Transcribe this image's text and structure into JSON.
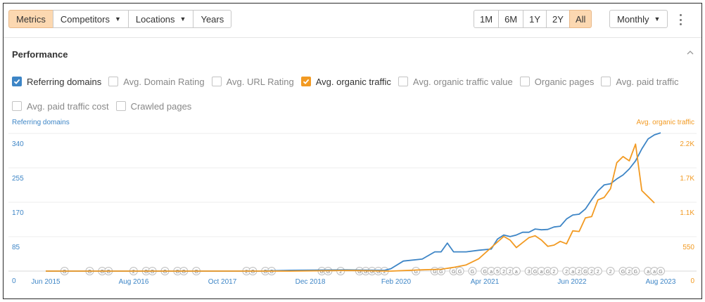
{
  "toolbar": {
    "tabs": [
      {
        "label": "Metrics",
        "active": true,
        "dropdown": false
      },
      {
        "label": "Competitors",
        "active": false,
        "dropdown": true
      },
      {
        "label": "Locations",
        "active": false,
        "dropdown": true
      },
      {
        "label": "Years",
        "active": false,
        "dropdown": false
      }
    ],
    "ranges": [
      {
        "label": "1M",
        "active": false
      },
      {
        "label": "6M",
        "active": false
      },
      {
        "label": "1Y",
        "active": false
      },
      {
        "label": "2Y",
        "active": false
      },
      {
        "label": "All",
        "active": true
      }
    ],
    "interval_label": "Monthly",
    "more_icon": "more-vertical-icon"
  },
  "performance": {
    "title": "Performance",
    "collapse_icon": "chevron-up-icon",
    "metrics_row1": [
      {
        "label": "Referring domains",
        "checked": true,
        "color": "#3d85c6"
      },
      {
        "label": "Avg. Domain Rating",
        "checked": false
      },
      {
        "label": "Avg. URL Rating",
        "checked": false
      },
      {
        "label": "Avg. organic traffic",
        "checked": true,
        "color": "#f29a22"
      },
      {
        "label": "Avg. organic traffic value",
        "checked": false
      },
      {
        "label": "Organic pages",
        "checked": false
      },
      {
        "label": "Avg. paid traffic",
        "checked": false
      }
    ],
    "metrics_row2": [
      {
        "label": "Avg. paid traffic cost",
        "checked": false
      },
      {
        "label": "Crawled pages",
        "checked": false
      }
    ]
  },
  "chart_data": {
    "type": "line",
    "left_axis_label": "Referring domains",
    "right_axis_label": "Avg. organic traffic",
    "left_ticks": [
      "0",
      "85",
      "170",
      "255",
      "340"
    ],
    "right_ticks": [
      "0",
      "550",
      "1.1K",
      "1.7K",
      "2.2K"
    ],
    "x_tick_labels": [
      "Jun 2015",
      "Aug 2016",
      "Oct 2017",
      "Dec 2018",
      "Feb 2020",
      "Apr 2021",
      "Jun 2022",
      "Aug 2023"
    ],
    "grid": true,
    "colors": {
      "left": "#3d85c6",
      "right": "#f29a22"
    },
    "series": [
      {
        "name": "Referring domains",
        "axis": "left",
        "color": "#3d85c6",
        "points": [
          [
            "2015-06",
            0
          ],
          [
            "2016-01",
            0
          ],
          [
            "2016-08",
            0
          ],
          [
            "2017-03",
            0
          ],
          [
            "2017-10",
            0
          ],
          [
            "2018-04",
            0
          ],
          [
            "2018-09",
            2
          ],
          [
            "2019-06",
            3
          ],
          [
            "2019-12",
            2
          ],
          [
            "2020-01",
            6
          ],
          [
            "2020-03",
            25
          ],
          [
            "2020-06",
            30
          ],
          [
            "2020-08",
            48
          ],
          [
            "2020-09",
            48
          ],
          [
            "2020-10",
            70
          ],
          [
            "2020-11",
            48
          ],
          [
            "2020-12",
            48
          ],
          [
            "2021-01",
            48
          ],
          [
            "2021-03",
            52
          ],
          [
            "2021-05",
            55
          ],
          [
            "2021-06",
            80
          ],
          [
            "2021-07",
            90
          ],
          [
            "2021-08",
            86
          ],
          [
            "2021-09",
            90
          ],
          [
            "2021-10",
            97
          ],
          [
            "2021-11",
            97
          ],
          [
            "2021-12",
            105
          ],
          [
            "2022-01",
            103
          ],
          [
            "2022-02",
            104
          ],
          [
            "2022-03",
            110
          ],
          [
            "2022-04",
            112
          ],
          [
            "2022-05",
            130
          ],
          [
            "2022-06",
            140
          ],
          [
            "2022-07",
            142
          ],
          [
            "2022-08",
            155
          ],
          [
            "2022-09",
            178
          ],
          [
            "2022-10",
            200
          ],
          [
            "2022-11",
            215
          ],
          [
            "2022-12",
            218
          ],
          [
            "2023-01",
            230
          ],
          [
            "2023-02",
            240
          ],
          [
            "2023-03",
            255
          ],
          [
            "2023-04",
            275
          ],
          [
            "2023-05",
            305
          ],
          [
            "2023-06",
            330
          ],
          [
            "2023-07",
            340
          ],
          [
            "2023-08",
            345
          ]
        ]
      },
      {
        "name": "Avg. organic traffic",
        "axis": "right",
        "color": "#f29a22",
        "points": [
          [
            "2015-06",
            0
          ],
          [
            "2016-01",
            0
          ],
          [
            "2016-08",
            0
          ],
          [
            "2017-03",
            0
          ],
          [
            "2017-10",
            0
          ],
          [
            "2018-04",
            0
          ],
          [
            "2018-09",
            0
          ],
          [
            "2019-06",
            10
          ],
          [
            "2020-01",
            0
          ],
          [
            "2020-06",
            20
          ],
          [
            "2020-09",
            30
          ],
          [
            "2020-11",
            60
          ],
          [
            "2021-01",
            100
          ],
          [
            "2021-03",
            200
          ],
          [
            "2021-05",
            380
          ],
          [
            "2021-07",
            560
          ],
          [
            "2021-08",
            500
          ],
          [
            "2021-09",
            380
          ],
          [
            "2021-10",
            460
          ],
          [
            "2021-11",
            540
          ],
          [
            "2021-12",
            570
          ],
          [
            "2022-01",
            500
          ],
          [
            "2022-02",
            400
          ],
          [
            "2022-03",
            420
          ],
          [
            "2022-04",
            480
          ],
          [
            "2022-05",
            440
          ],
          [
            "2022-06",
            650
          ],
          [
            "2022-07",
            640
          ],
          [
            "2022-08",
            860
          ],
          [
            "2022-09",
            880
          ],
          [
            "2022-10",
            1150
          ],
          [
            "2022-11",
            1190
          ],
          [
            "2022-12",
            1330
          ],
          [
            "2023-01",
            1750
          ],
          [
            "2023-02",
            1850
          ],
          [
            "2023-03",
            1780
          ],
          [
            "2023-04",
            2050
          ],
          [
            "2023-05",
            1300
          ],
          [
            "2023-06",
            1200
          ],
          [
            "2023-07",
            1100
          ]
        ]
      }
    ],
    "annotations": [
      {
        "date": "2015-09",
        "label": "G"
      },
      {
        "date": "2016-01",
        "label": "G"
      },
      {
        "date": "2016-03",
        "label": "G"
      },
      {
        "date": "2016-04",
        "label": "G"
      },
      {
        "date": "2016-08",
        "label": "2"
      },
      {
        "date": "2016-10",
        "label": "G"
      },
      {
        "date": "2016-11",
        "label": "G"
      },
      {
        "date": "2017-01",
        "label": "G"
      },
      {
        "date": "2017-03",
        "label": "G"
      },
      {
        "date": "2017-04",
        "label": "G"
      },
      {
        "date": "2017-06",
        "label": "G"
      },
      {
        "date": "2018-02",
        "label": "2"
      },
      {
        "date": "2018-03",
        "label": "G"
      },
      {
        "date": "2018-05",
        "label": "G"
      },
      {
        "date": "2018-06",
        "label": "G"
      },
      {
        "date": "2019-02",
        "label": "G"
      },
      {
        "date": "2019-03",
        "label": "G"
      },
      {
        "date": "2019-05",
        "label": "2"
      },
      {
        "date": "2019-08",
        "label": "G"
      },
      {
        "date": "2019-09",
        "label": "G"
      },
      {
        "date": "2019-10",
        "label": "G"
      },
      {
        "date": "2019-11",
        "label": "G"
      },
      {
        "date": "2019-12",
        "label": "2"
      },
      {
        "date": "2020-05",
        "label": "G"
      },
      {
        "date": "2020-08",
        "label": "G"
      },
      {
        "date": "2020-09",
        "label": "G"
      },
      {
        "date": "2020-11",
        "label": "G"
      },
      {
        "date": "2020-12",
        "label": "G"
      },
      {
        "date": "2021-02",
        "label": "G"
      },
      {
        "date": "2021-04",
        "label": "G"
      },
      {
        "date": "2021-05",
        "label": "a"
      },
      {
        "date": "2021-06",
        "label": "5"
      },
      {
        "date": "2021-07",
        "label": "2"
      },
      {
        "date": "2021-08",
        "label": "2"
      },
      {
        "date": "2021-09",
        "label": "a"
      },
      {
        "date": "2021-11",
        "label": "3"
      },
      {
        "date": "2021-12",
        "label": "G"
      },
      {
        "date": "2022-01",
        "label": "a"
      },
      {
        "date": "2022-02",
        "label": "G"
      },
      {
        "date": "2022-03",
        "label": "2"
      },
      {
        "date": "2022-05",
        "label": "2"
      },
      {
        "date": "2022-06",
        "label": "a"
      },
      {
        "date": "2022-07",
        "label": "2"
      },
      {
        "date": "2022-08",
        "label": "G"
      },
      {
        "date": "2022-09",
        "label": "2"
      },
      {
        "date": "2022-10",
        "label": "2"
      },
      {
        "date": "2022-12",
        "label": "2"
      },
      {
        "date": "2023-02",
        "label": "G"
      },
      {
        "date": "2023-03",
        "label": "2"
      },
      {
        "date": "2023-04",
        "label": "G"
      },
      {
        "date": "2023-06",
        "label": "a"
      },
      {
        "date": "2023-07",
        "label": "a"
      },
      {
        "date": "2023-08",
        "label": "G"
      }
    ]
  }
}
